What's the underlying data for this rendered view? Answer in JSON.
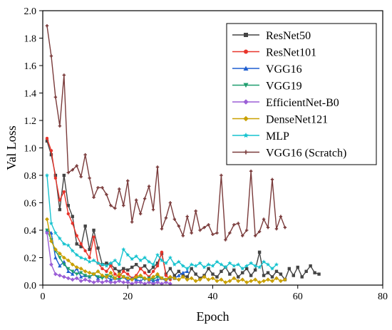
{
  "chart_data": {
    "type": "line",
    "title": "",
    "xlabel": "Epoch",
    "ylabel": "Val Loss",
    "xlim": [
      0,
      80
    ],
    "ylim": [
      0,
      2.0
    ],
    "x_ticks": [
      0,
      20,
      40,
      60,
      80
    ],
    "y_ticks": [
      0.0,
      0.2,
      0.4,
      0.6,
      0.8,
      1.0,
      1.2,
      1.4,
      1.6,
      1.8,
      2.0
    ],
    "grid": false,
    "legend_position": "top-right",
    "series": [
      {
        "name": "ResNet50",
        "color": "#444444",
        "marker": "square",
        "x": [
          1,
          2,
          3,
          4,
          5,
          6,
          7,
          8,
          9,
          10,
          11,
          12,
          13,
          14,
          15,
          16,
          17,
          18,
          19,
          20,
          21,
          22,
          23,
          24,
          25,
          26,
          27,
          28,
          29,
          30,
          31,
          32,
          33,
          34,
          35,
          36,
          37,
          38,
          39,
          40,
          41,
          42,
          43,
          44,
          45,
          46,
          47,
          48,
          49,
          50,
          51,
          52,
          53,
          54,
          55,
          56,
          57,
          58,
          59,
          60,
          61,
          62,
          63,
          64,
          65
        ],
        "values": [
          1.05,
          0.95,
          0.8,
          0.55,
          0.8,
          0.58,
          0.5,
          0.3,
          0.28,
          0.43,
          0.26,
          0.4,
          0.27,
          0.15,
          0.16,
          0.15,
          0.12,
          0.1,
          0.12,
          0.11,
          0.13,
          0.15,
          0.12,
          0.14,
          0.1,
          0.13,
          0.16,
          0.23,
          0.08,
          0.12,
          0.07,
          0.1,
          0.07,
          0.06,
          0.12,
          0.08,
          0.05,
          0.07,
          0.12,
          0.08,
          0.06,
          0.1,
          0.13,
          0.08,
          0.11,
          0.06,
          0.09,
          0.12,
          0.07,
          0.11,
          0.24,
          0.07,
          0.09,
          0.06,
          0.1,
          0.08,
          0.04,
          0.12,
          0.07,
          0.13,
          0.06,
          0.1,
          0.14,
          0.09,
          0.08
        ]
      },
      {
        "name": "ResNet101",
        "color": "#e8342b",
        "marker": "circle",
        "x": [
          1,
          2,
          3,
          4,
          5,
          6,
          7,
          8,
          9,
          10,
          11,
          12,
          13,
          14,
          15,
          16,
          17,
          18,
          19,
          20,
          21,
          22,
          23,
          24,
          25,
          26,
          27,
          28,
          29,
          30
        ],
        "values": [
          1.07,
          0.98,
          0.78,
          0.62,
          0.68,
          0.52,
          0.45,
          0.36,
          0.3,
          0.25,
          0.2,
          0.35,
          0.16,
          0.12,
          0.1,
          0.14,
          0.08,
          0.06,
          0.1,
          0.08,
          0.05,
          0.07,
          0.12,
          0.09,
          0.06,
          0.1,
          0.14,
          0.24,
          0.07,
          0.04
        ]
      },
      {
        "name": "VGG16",
        "color": "#1f5fd0",
        "marker": "triangle",
        "x": [
          1,
          2,
          3,
          4,
          5,
          6,
          7,
          8,
          9,
          10,
          11,
          12,
          13,
          14,
          15,
          16,
          17,
          18,
          19,
          20,
          21,
          22,
          23,
          24,
          25,
          26,
          27,
          28,
          29,
          30,
          31,
          32,
          33,
          34
        ],
        "values": [
          0.4,
          0.38,
          0.2,
          0.14,
          0.17,
          0.1,
          0.08,
          0.12,
          0.06,
          0.07,
          0.06,
          0.08,
          0.05,
          0.07,
          0.06,
          0.04,
          0.05,
          0.04,
          0.06,
          0.03,
          0.05,
          0.04,
          0.03,
          0.05,
          0.04,
          0.03,
          0.04,
          0.05,
          0.03,
          0.06,
          0.05,
          0.07,
          0.09,
          0.1
        ]
      },
      {
        "name": "VGG19",
        "color": "#1e9e6e",
        "marker": "triangle-down",
        "x": [
          1,
          2,
          3,
          4,
          5,
          6,
          7,
          8,
          9,
          10,
          11,
          12,
          13,
          14,
          15,
          16,
          17,
          18,
          19,
          20,
          21,
          22,
          23,
          24,
          25,
          26,
          27,
          28,
          29,
          30
        ],
        "values": [
          0.4,
          0.33,
          0.25,
          0.2,
          0.15,
          0.12,
          0.1,
          0.08,
          0.09,
          0.07,
          0.06,
          0.08,
          0.06,
          0.05,
          0.07,
          0.06,
          0.05,
          0.04,
          0.06,
          0.05,
          0.04,
          0.05,
          0.06,
          0.04,
          0.05,
          0.04,
          0.06,
          0.05,
          0.04,
          0.05
        ]
      },
      {
        "name": "EfficientNet-B0",
        "color": "#9b5fd6",
        "marker": "diamond",
        "x": [
          1,
          2,
          3,
          4,
          5,
          6,
          7,
          8,
          9,
          10,
          11,
          12,
          13,
          14,
          15,
          16,
          17,
          18,
          19,
          20,
          21,
          22,
          23,
          24,
          25,
          26,
          27,
          28,
          29,
          30
        ],
        "values": [
          0.38,
          0.15,
          0.08,
          0.07,
          0.06,
          0.05,
          0.04,
          0.05,
          0.03,
          0.04,
          0.03,
          0.02,
          0.03,
          0.02,
          0.03,
          0.02,
          0.02,
          0.03,
          0.02,
          0.02,
          0.01,
          0.02,
          0.02,
          0.01,
          0.02,
          0.01,
          0.02,
          0.01,
          0.02,
          0.01
        ]
      },
      {
        "name": "DenseNet121",
        "color": "#c9a000",
        "marker": "diamond",
        "x": [
          1,
          2,
          3,
          4,
          5,
          6,
          7,
          8,
          9,
          10,
          11,
          12,
          13,
          14,
          15,
          16,
          17,
          18,
          19,
          20,
          21,
          22,
          23,
          24,
          25,
          26,
          27,
          28,
          29,
          30,
          31,
          32,
          33,
          34,
          35,
          36,
          37,
          38,
          39,
          40,
          41,
          42,
          43,
          44,
          45,
          46,
          47,
          48,
          49,
          50,
          51,
          52,
          53,
          54,
          55,
          56,
          57
        ],
        "values": [
          0.48,
          0.32,
          0.26,
          0.23,
          0.2,
          0.18,
          0.15,
          0.13,
          0.12,
          0.1,
          0.09,
          0.08,
          0.1,
          0.07,
          0.06,
          0.09,
          0.05,
          0.08,
          0.06,
          0.05,
          0.04,
          0.06,
          0.07,
          0.05,
          0.04,
          0.06,
          0.08,
          0.05,
          0.04,
          0.06,
          0.05,
          0.04,
          0.06,
          0.04,
          0.05,
          0.03,
          0.04,
          0.06,
          0.04,
          0.05,
          0.03,
          0.04,
          0.02,
          0.03,
          0.05,
          0.03,
          0.04,
          0.02,
          0.03,
          0.04,
          0.02,
          0.03,
          0.04,
          0.03,
          0.05,
          0.03,
          0.04
        ]
      },
      {
        "name": "MLP",
        "color": "#17c3cf",
        "marker": "star",
        "x": [
          1,
          2,
          3,
          4,
          5,
          6,
          7,
          8,
          9,
          10,
          11,
          12,
          13,
          14,
          15,
          16,
          17,
          18,
          19,
          20,
          21,
          22,
          23,
          24,
          25,
          26,
          27,
          28,
          29,
          30,
          31,
          32,
          33,
          34,
          35,
          36,
          37,
          38,
          39,
          40,
          41,
          42,
          43,
          44,
          45,
          46,
          47,
          48,
          49,
          50,
          51,
          52,
          53,
          54,
          55
        ],
        "values": [
          0.8,
          0.45,
          0.38,
          0.34,
          0.3,
          0.29,
          0.25,
          0.22,
          0.2,
          0.19,
          0.17,
          0.18,
          0.16,
          0.15,
          0.14,
          0.16,
          0.18,
          0.15,
          0.26,
          0.22,
          0.19,
          0.21,
          0.18,
          0.2,
          0.17,
          0.15,
          0.22,
          0.18,
          0.16,
          0.2,
          0.15,
          0.17,
          0.14,
          0.12,
          0.15,
          0.14,
          0.16,
          0.13,
          0.15,
          0.14,
          0.17,
          0.15,
          0.13,
          0.16,
          0.14,
          0.15,
          0.12,
          0.14,
          0.16,
          0.14,
          0.13,
          0.17,
          0.15,
          0.12,
          0.15
        ]
      },
      {
        "name": "VGG16 (Scratch)",
        "color": "#7a3b3b",
        "marker": "plus",
        "x": [
          1,
          2,
          3,
          4,
          5,
          6,
          7,
          8,
          9,
          10,
          11,
          12,
          13,
          14,
          15,
          16,
          17,
          18,
          19,
          20,
          21,
          22,
          23,
          24,
          25,
          26,
          27,
          28,
          29,
          30,
          31,
          32,
          33,
          34,
          35,
          36,
          37,
          38,
          39,
          40,
          41,
          42,
          43,
          44,
          45,
          46,
          47,
          48,
          49,
          50,
          51,
          52,
          53,
          54,
          55,
          56,
          57
        ],
        "values": [
          1.89,
          1.67,
          1.37,
          1.16,
          1.53,
          0.82,
          0.84,
          0.87,
          0.79,
          0.95,
          0.78,
          0.64,
          0.71,
          0.71,
          0.66,
          0.58,
          0.56,
          0.7,
          0.58,
          0.76,
          0.46,
          0.62,
          0.52,
          0.63,
          0.72,
          0.55,
          0.86,
          0.41,
          0.49,
          0.6,
          0.48,
          0.43,
          0.36,
          0.5,
          0.38,
          0.54,
          0.4,
          0.42,
          0.44,
          0.37,
          0.38,
          0.8,
          0.33,
          0.38,
          0.44,
          0.45,
          0.36,
          0.4,
          0.83,
          0.36,
          0.39,
          0.48,
          0.42,
          0.77,
          0.41,
          0.5,
          0.42
        ]
      }
    ]
  }
}
